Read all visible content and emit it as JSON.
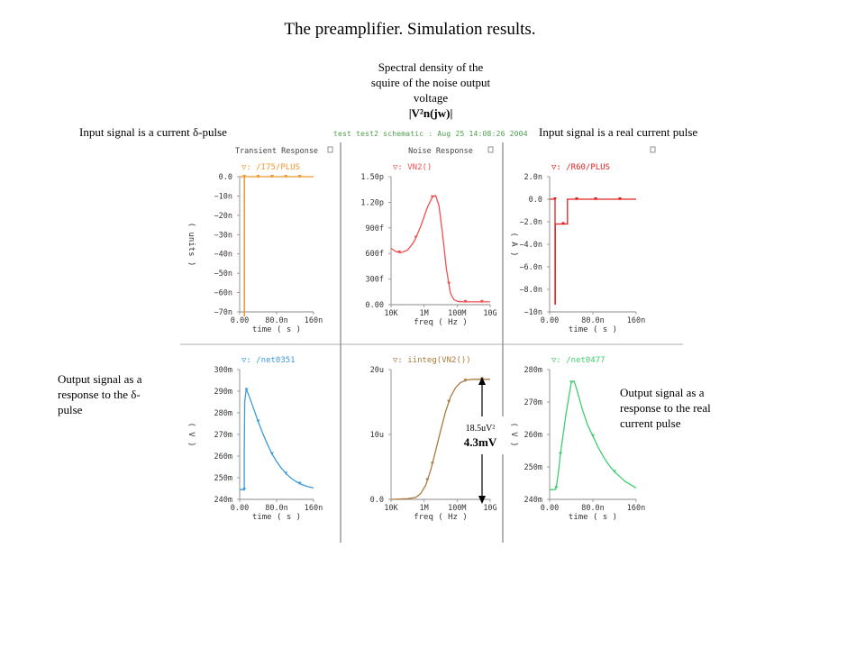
{
  "page": {
    "title": "The preamplifier. Simulation results.",
    "caption_center_lines": [
      "Spectral density of the",
      "squire of the noise output",
      "voltage"
    ],
    "caption_center_formula": "|V²n(jw)|",
    "caption_top_left": "Input signal is a current δ-pulse",
    "caption_top_right": "Input signal is a real current pulse",
    "caption_bottom_left_lines": [
      "Output signal as a",
      "response to the δ-",
      "pulse"
    ],
    "caption_bottom_right_lines": [
      "Output signal as a",
      "response to the real",
      "current pulse"
    ],
    "simulator_header": "test test2 schematic : Aug 25 14:08:26 2004",
    "annotation_small": "18.5uV²",
    "annotation_big": "4.3mV"
  },
  "chart_data": [
    {
      "type": "line",
      "panel": "transient_input",
      "title": "Transient Response",
      "legend": "/I75/PLUS",
      "color": "#f0962d",
      "marker": "▽",
      "xlabel": "time ( s )",
      "ylabel": "( units )",
      "xlim": [
        0,
        160
      ],
      "ylim": [
        -70,
        0
      ],
      "xticks": [
        "0.00",
        "80.0n",
        "160n"
      ],
      "xtick_vals": [
        0,
        80,
        160
      ],
      "yticks": [
        "0.0",
        "−10n",
        "−20n",
        "−30n",
        "−40n",
        "−50n",
        "−60n",
        "−70n"
      ],
      "ytick_vals": [
        0,
        -10,
        -20,
        -30,
        -40,
        -50,
        -60,
        -70
      ],
      "x": [
        0,
        10,
        10,
        10.3,
        10.3,
        160
      ],
      "y": [
        0,
        0,
        -72,
        -72,
        0,
        0
      ],
      "markers_x": [
        10,
        40,
        70,
        100,
        130
      ]
    },
    {
      "type": "line",
      "panel": "noise",
      "title": "Noise Response",
      "legend": "VN2()",
      "color": "#f05050",
      "marker": "▽",
      "xlabel": "freq ( Hz )",
      "ylabel": "",
      "xscale": "log",
      "xlim": [
        4,
        10
      ],
      "ylim": [
        0,
        1.5
      ],
      "xticks": [
        "10K",
        "1M",
        "100M",
        "10G"
      ],
      "xtick_vals": [
        4,
        6,
        8,
        10
      ],
      "yticks": [
        "1.50p",
        "1.20p",
        "900f",
        "600f",
        "300f",
        "0.00"
      ],
      "ytick_vals": [
        1.5,
        1.2,
        0.9,
        0.6,
        0.3,
        0
      ],
      "x": [
        4,
        4.3,
        4.6,
        5.0,
        5.4,
        5.8,
        6.2,
        6.5,
        6.7,
        6.9,
        7.1,
        7.35,
        7.6,
        7.8,
        8.0,
        8.2,
        8.5,
        9.0,
        10
      ],
      "y": [
        0.66,
        0.62,
        0.61,
        0.64,
        0.74,
        0.92,
        1.14,
        1.26,
        1.28,
        1.16,
        0.86,
        0.42,
        0.13,
        0.06,
        0.04,
        0.035,
        0.033,
        0.033,
        0.033
      ],
      "markers_x": [
        4.5,
        5.5,
        6.5,
        7.5,
        8.5,
        9.5
      ]
    },
    {
      "type": "line",
      "panel": "real_input",
      "title": "",
      "legend": "/R60/PLUS",
      "color": "#e02020",
      "marker": "▽",
      "xlabel": "time ( s )",
      "ylabel": "( A )",
      "xlim": [
        0,
        160
      ],
      "ylim": [
        -10,
        2
      ],
      "xticks": [
        "0.00",
        "80.0n",
        "160n"
      ],
      "xtick_vals": [
        0,
        80,
        160
      ],
      "yticks": [
        "2.0n",
        "0.0",
        "−2.0n",
        "−4.0n",
        "−6.0n",
        "−8.0n",
        "−10n"
      ],
      "ytick_vals": [
        2,
        0,
        -2,
        -4,
        -6,
        -8,
        -10
      ],
      "x": [
        0,
        10,
        10,
        10.5,
        10.5,
        20,
        20,
        33,
        33,
        160
      ],
      "y": [
        0,
        0,
        -9.3,
        -9.3,
        -2.2,
        -2.2,
        -2.2,
        -2.2,
        0,
        0
      ],
      "markers_x": [
        10,
        25,
        50,
        85,
        130
      ]
    },
    {
      "type": "line",
      "panel": "output_delta",
      "title": "",
      "legend": "/net0351",
      "color": "#3b9ad9",
      "marker": "▽",
      "xlabel": "time ( s )",
      "ylabel": "( V )",
      "xlim": [
        0,
        160
      ],
      "ylim": [
        240,
        300
      ],
      "xticks": [
        "0.00",
        "80.0n",
        "160n"
      ],
      "xtick_vals": [
        0,
        80,
        160
      ],
      "yticks": [
        "300m",
        "290m",
        "280m",
        "270m",
        "260m",
        "250m",
        "240m"
      ],
      "ytick_vals": [
        300,
        290,
        280,
        270,
        260,
        250,
        240
      ],
      "x": [
        0,
        10,
        10,
        11,
        14,
        20,
        30,
        40,
        50,
        60,
        70,
        80,
        90,
        100,
        110,
        120,
        130,
        140,
        150,
        160
      ],
      "y": [
        244.5,
        244.5,
        262,
        285,
        291,
        288,
        282,
        276,
        270.5,
        265.5,
        261,
        257.5,
        254.5,
        252,
        250,
        248.5,
        247.3,
        246.4,
        245.8,
        245.3
      ],
      "markers_x": [
        10,
        15,
        40,
        70,
        100,
        130
      ]
    },
    {
      "type": "line",
      "panel": "integral",
      "title": "",
      "legend": "iinteg(VN2())",
      "color": "#a87a3c",
      "marker": "▽",
      "xlabel": "freq ( Hz )",
      "ylabel": "",
      "xscale": "log",
      "xlim": [
        4,
        10
      ],
      "ylim": [
        0,
        20
      ],
      "xticks": [
        "10K",
        "1M",
        "100M",
        "10G"
      ],
      "xtick_vals": [
        4,
        6,
        8,
        10
      ],
      "yticks": [
        "20u",
        "10u",
        "0.0"
      ],
      "ytick_vals": [
        20,
        10,
        0
      ],
      "x": [
        4,
        4.5,
        5,
        5.5,
        5.8,
        6.1,
        6.4,
        6.7,
        7.0,
        7.3,
        7.6,
        7.9,
        8.2,
        8.6,
        9.0,
        9.5,
        10
      ],
      "y": [
        0,
        0.05,
        0.1,
        0.3,
        0.9,
        2.2,
        4.5,
        7.5,
        10.6,
        13.5,
        15.8,
        17.2,
        18.0,
        18.4,
        18.5,
        18.5,
        18.5
      ],
      "markers_x": [
        6.2,
        6.5,
        7.5,
        8.5,
        9.5
      ]
    },
    {
      "type": "line",
      "panel": "output_real",
      "title": "",
      "legend": "/net0477",
      "color": "#3fcf6f",
      "marker": "▽",
      "xlabel": "time ( s )",
      "ylabel": "( V )",
      "xlim": [
        0,
        160
      ],
      "ylim": [
        240,
        280
      ],
      "xticks": [
        "0.00",
        "80.0n",
        "160n"
      ],
      "xtick_vals": [
        0,
        80,
        160
      ],
      "yticks": [
        "280m",
        "270m",
        "260m",
        "250m",
        "240m"
      ],
      "ytick_vals": [
        280,
        270,
        260,
        250,
        240
      ],
      "x": [
        0,
        10,
        12,
        16,
        20,
        25,
        30,
        35,
        40,
        45,
        50,
        60,
        70,
        80,
        90,
        100,
        110,
        120,
        130,
        140,
        150,
        160
      ],
      "y": [
        243,
        243,
        243.5,
        248,
        254,
        260,
        266,
        271,
        276,
        276.5,
        274,
        268,
        263,
        259.5,
        256,
        253,
        250.5,
        248.5,
        247,
        245.5,
        244.5,
        243.5
      ],
      "markers_x": [
        12,
        20,
        40,
        80,
        120
      ]
    }
  ]
}
